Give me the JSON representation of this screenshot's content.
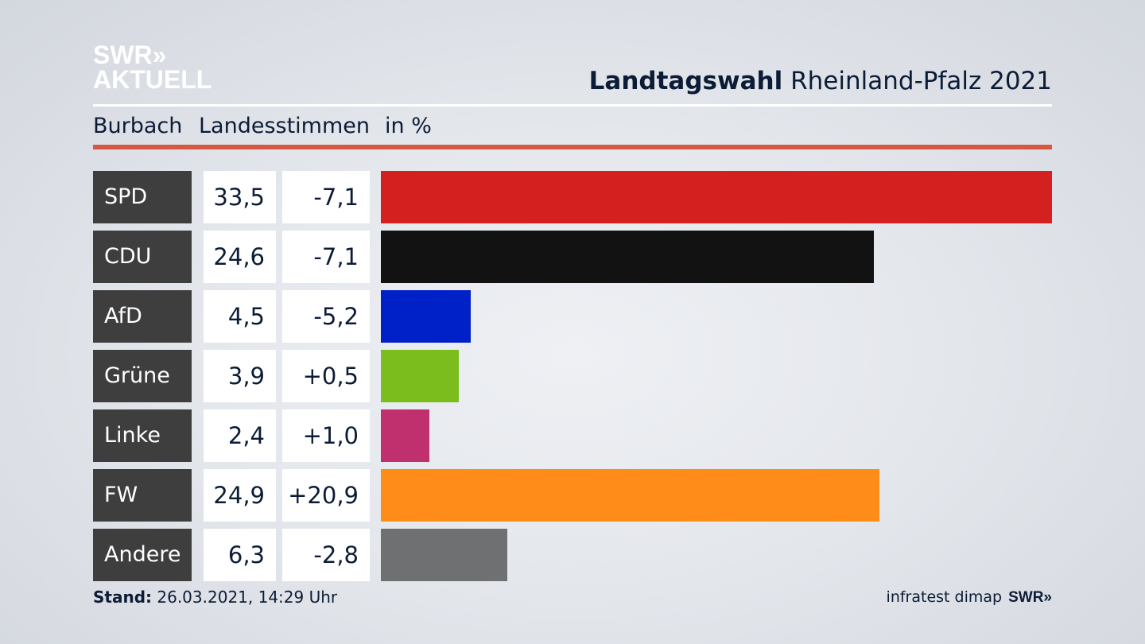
{
  "logo": {
    "line1": "SWR»",
    "line2": "AKTUELL"
  },
  "header": {
    "title_bold": "Landtagswahl",
    "title_rest": "Rheinland-Pfalz 2021",
    "location": "Burbach",
    "vote_type": "Landesstimmen",
    "unit": "in %"
  },
  "chart_data": {
    "type": "bar",
    "orientation": "horizontal",
    "title": "Landtagswahl Rheinland-Pfalz 2021",
    "subtitle": "Burbach Landesstimmen in %",
    "categories": [
      "SPD",
      "CDU",
      "AfD",
      "Grüne",
      "Linke",
      "FW",
      "Andere"
    ],
    "values": [
      33.5,
      24.6,
      4.5,
      3.9,
      2.4,
      24.9,
      6.3
    ],
    "value_labels": [
      "33,5",
      "24,6",
      "4,5",
      "3,9",
      "2,4",
      "24,9",
      "6,3"
    ],
    "diff_labels": [
      "-7,1",
      "-7,1",
      "-5,2",
      "+0,5",
      "+1,0",
      "+20,9",
      "-2,8"
    ],
    "colors": [
      "#d52020",
      "#121212",
      "#0020c8",
      "#7abd1c",
      "#c0306e",
      "#ff8c18",
      "#6f7072"
    ],
    "xlim": [
      0,
      33.5
    ]
  },
  "footer": {
    "stand_label": "Stand:",
    "stand_value": "26.03.2021, 14:29 Uhr",
    "source": "infratest dimap",
    "brand": "SWR»"
  }
}
